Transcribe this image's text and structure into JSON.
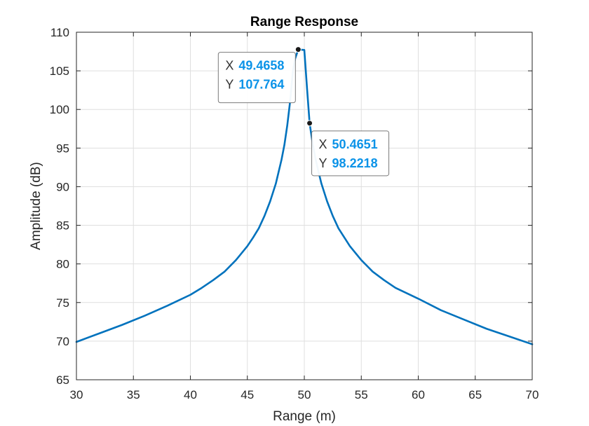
{
  "chart_data": {
    "type": "line",
    "title": "Range Response",
    "xlabel": "Range (m)",
    "ylabel": "Amplitude (dB)",
    "xlim": [
      30,
      70
    ],
    "ylim": [
      65,
      110
    ],
    "xticks": [
      "30",
      "35",
      "40",
      "45",
      "50",
      "55",
      "60",
      "65",
      "70"
    ],
    "yticks": [
      "65",
      "70",
      "75",
      "80",
      "85",
      "90",
      "95",
      "100",
      "105",
      "110"
    ],
    "grid": true,
    "line_color": "#0072BD",
    "series": [
      {
        "name": "",
        "x": [
          30,
          32,
          34,
          36,
          38,
          40,
          41,
          42,
          43,
          44,
          45,
          45.5,
          46,
          46.5,
          47,
          47.5,
          48,
          48.25,
          48.5,
          48.75,
          49,
          49.2,
          49.4658,
          50.0,
          50.25,
          50.4651,
          50.75,
          51,
          51.25,
          51.5,
          52,
          52.5,
          53,
          54,
          55,
          56,
          57,
          58,
          60,
          62,
          64,
          66,
          68,
          70
        ],
        "y": [
          69.9,
          71.0,
          72.1,
          73.3,
          74.6,
          76.0,
          76.9,
          77.9,
          79.0,
          80.5,
          82.3,
          83.4,
          84.6,
          86.2,
          88.1,
          90.4,
          93.5,
          95.4,
          97.9,
          101.0,
          105.0,
          106.6,
          107.764,
          107.7,
          102.5,
          98.2218,
          95.4,
          93.5,
          91.9,
          90.4,
          88.1,
          86.2,
          84.6,
          82.3,
          80.5,
          79.0,
          77.9,
          76.9,
          75.5,
          74.0,
          72.8,
          71.6,
          70.6,
          69.6
        ]
      }
    ],
    "annotations": [
      {
        "x_label": "X",
        "x_value": "49.4658",
        "y_label": "Y",
        "y_value": "107.764",
        "x": 49.4658,
        "y": 107.764
      },
      {
        "x_label": "X",
        "x_value": "50.4651",
        "y_label": "Y",
        "y_value": "98.2218",
        "x": 50.4651,
        "y": 98.2218
      }
    ],
    "value_color": "#0b93e8"
  }
}
